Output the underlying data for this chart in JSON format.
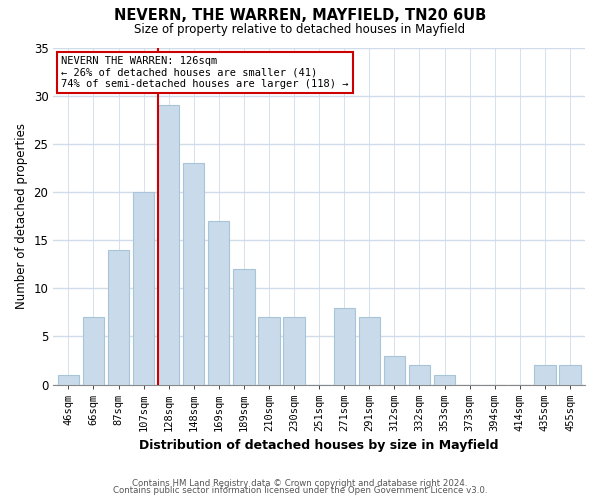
{
  "title": "NEVERN, THE WARREN, MAYFIELD, TN20 6UB",
  "subtitle": "Size of property relative to detached houses in Mayfield",
  "xlabel": "Distribution of detached houses by size in Mayfield",
  "ylabel": "Number of detached properties",
  "footer_line1": "Contains HM Land Registry data © Crown copyright and database right 2024.",
  "footer_line2": "Contains public sector information licensed under the Open Government Licence v3.0.",
  "bar_labels": [
    "46sqm",
    "66sqm",
    "87sqm",
    "107sqm",
    "128sqm",
    "148sqm",
    "169sqm",
    "189sqm",
    "210sqm",
    "230sqm",
    "251sqm",
    "271sqm",
    "291sqm",
    "312sqm",
    "332sqm",
    "353sqm",
    "373sqm",
    "394sqm",
    "414sqm",
    "435sqm",
    "455sqm"
  ],
  "bar_values": [
    1,
    7,
    14,
    20,
    29,
    23,
    17,
    12,
    7,
    7,
    0,
    8,
    7,
    3,
    2,
    1,
    0,
    0,
    0,
    2,
    2
  ],
  "bar_color": "#c9daea",
  "bar_edge_color": "#a8c4d8",
  "vline_color": "#cc0000",
  "ylim": [
    0,
    35
  ],
  "yticks": [
    0,
    5,
    10,
    15,
    20,
    25,
    30,
    35
  ],
  "annotation_title": "NEVERN THE WARREN: 126sqm",
  "annotation_line1": "← 26% of detached houses are smaller (41)",
  "annotation_line2": "74% of semi-detached houses are larger (118) →",
  "annotation_box_color": "#ffffff",
  "annotation_box_edge": "#cc0000",
  "background_color": "#ffffff",
  "grid_color": "#d0dce8",
  "vline_index": 4
}
